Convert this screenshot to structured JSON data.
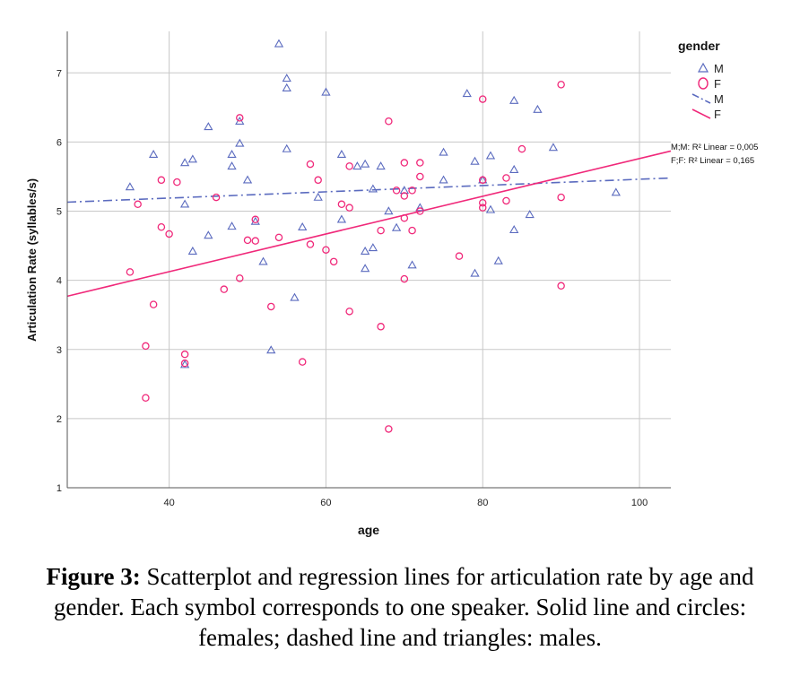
{
  "chart_data": {
    "type": "scatter",
    "xlabel": "age",
    "ylabel": "Articulation Rate (syllables/s)",
    "xlim": [
      27,
      104
    ],
    "ylim": [
      1,
      7.6
    ],
    "x_ticks": [
      40,
      60,
      80,
      100
    ],
    "y_ticks": [
      1,
      2,
      3,
      4,
      5,
      6,
      7
    ],
    "grid": true,
    "legend": {
      "title": "gender",
      "placement": "right",
      "entries": [
        {
          "label": "M",
          "kind": "marker",
          "marker": "triangle",
          "color": "#5b6bbf"
        },
        {
          "label": "F",
          "kind": "marker",
          "marker": "circle",
          "color": "#f0297a"
        },
        {
          "label": "M",
          "kind": "line",
          "dash": "dashdot",
          "color": "#5b6bbf"
        },
        {
          "label": "F",
          "kind": "line",
          "dash": "solid",
          "color": "#f0297a"
        }
      ]
    },
    "series": [
      {
        "name": "M",
        "marker": "triangle",
        "color": "#5b6bbf",
        "points": [
          [
            35,
            5.35
          ],
          [
            38,
            5.82
          ],
          [
            42,
            5.7
          ],
          [
            42,
            5.1
          ],
          [
            43,
            5.75
          ],
          [
            42,
            2.78
          ],
          [
            43,
            4.42
          ],
          [
            45,
            6.22
          ],
          [
            45,
            4.65
          ],
          [
            48,
            5.82
          ],
          [
            48,
            5.65
          ],
          [
            48,
            4.78
          ],
          [
            49,
            5.98
          ],
          [
            49,
            6.3
          ],
          [
            50,
            5.45
          ],
          [
            51,
            4.85
          ],
          [
            52,
            4.27
          ],
          [
            53,
            2.99
          ],
          [
            54,
            7.42
          ],
          [
            55,
            6.92
          ],
          [
            55,
            6.78
          ],
          [
            55,
            5.9
          ],
          [
            56,
            3.75
          ],
          [
            57,
            4.77
          ],
          [
            59,
            5.2
          ],
          [
            60,
            6.72
          ],
          [
            62,
            5.82
          ],
          [
            62,
            4.88
          ],
          [
            64,
            5.65
          ],
          [
            65,
            5.68
          ],
          [
            65,
            4.42
          ],
          [
            65,
            4.17
          ],
          [
            66,
            5.32
          ],
          [
            66,
            4.47
          ],
          [
            67,
            5.65
          ],
          [
            68,
            5.0
          ],
          [
            69,
            4.76
          ],
          [
            70,
            5.3
          ],
          [
            71,
            4.22
          ],
          [
            72,
            5.05
          ],
          [
            75,
            5.85
          ],
          [
            75,
            5.45
          ],
          [
            78,
            6.7
          ],
          [
            79,
            5.72
          ],
          [
            79,
            4.1
          ],
          [
            80,
            5.45
          ],
          [
            81,
            5.8
          ],
          [
            81,
            5.02
          ],
          [
            82,
            4.28
          ],
          [
            84,
            6.6
          ],
          [
            84,
            5.6
          ],
          [
            84,
            4.73
          ],
          [
            86,
            4.95
          ],
          [
            87,
            6.47
          ],
          [
            89,
            5.92
          ],
          [
            97,
            5.27
          ]
        ]
      },
      {
        "name": "F",
        "marker": "circle",
        "color": "#f0297a",
        "points": [
          [
            35,
            4.12
          ],
          [
            36,
            5.1
          ],
          [
            37,
            3.05
          ],
          [
            37,
            2.3
          ],
          [
            38,
            3.65
          ],
          [
            39,
            5.45
          ],
          [
            39,
            4.77
          ],
          [
            40,
            4.67
          ],
          [
            41,
            5.42
          ],
          [
            42,
            2.93
          ],
          [
            42,
            2.8
          ],
          [
            46,
            5.2
          ],
          [
            47,
            3.87
          ],
          [
            49,
            6.35
          ],
          [
            49,
            4.03
          ],
          [
            50,
            4.58
          ],
          [
            51,
            4.57
          ],
          [
            51,
            4.88
          ],
          [
            53,
            3.62
          ],
          [
            54,
            4.62
          ],
          [
            57,
            2.82
          ],
          [
            58,
            5.68
          ],
          [
            58,
            4.52
          ],
          [
            59,
            5.45
          ],
          [
            60,
            4.44
          ],
          [
            61,
            4.27
          ],
          [
            62,
            5.1
          ],
          [
            63,
            5.05
          ],
          [
            63,
            5.65
          ],
          [
            63,
            3.55
          ],
          [
            67,
            4.72
          ],
          [
            67,
            3.33
          ],
          [
            68,
            6.3
          ],
          [
            68,
            1.85
          ],
          [
            69,
            5.3
          ],
          [
            70,
            5.7
          ],
          [
            70,
            5.22
          ],
          [
            70,
            4.9
          ],
          [
            70,
            4.02
          ],
          [
            71,
            5.3
          ],
          [
            71,
            4.72
          ],
          [
            72,
            5.7
          ],
          [
            72,
            5.5
          ],
          [
            72,
            5.0
          ],
          [
            77,
            4.35
          ],
          [
            80,
            6.62
          ],
          [
            80,
            5.45
          ],
          [
            80,
            5.12
          ],
          [
            80,
            5.05
          ],
          [
            83,
            5.48
          ],
          [
            83,
            5.15
          ],
          [
            85,
            5.9
          ],
          [
            90,
            6.83
          ],
          [
            90,
            5.2
          ],
          [
            90,
            3.92
          ]
        ]
      }
    ],
    "fit_lines": [
      {
        "name": "M",
        "style": "dashdot",
        "color": "#5b6bbf",
        "x": [
          27,
          104
        ],
        "y": [
          5.13,
          5.48
        ]
      },
      {
        "name": "F",
        "style": "solid",
        "color": "#f0297a",
        "x": [
          27,
          104
        ],
        "y": [
          3.77,
          5.87
        ]
      }
    ],
    "annotations": [
      {
        "text": "M;M: R² Linear = 0,005"
      },
      {
        "text": "F;F: R² Linear = 0,165"
      }
    ]
  },
  "caption": {
    "label": "Figure 3:",
    "text": " Scatterplot and regression lines for articulation rate by age and gender. Each symbol corresponds to one speaker. Solid line and circles: females; dashed line and triangles: males."
  }
}
